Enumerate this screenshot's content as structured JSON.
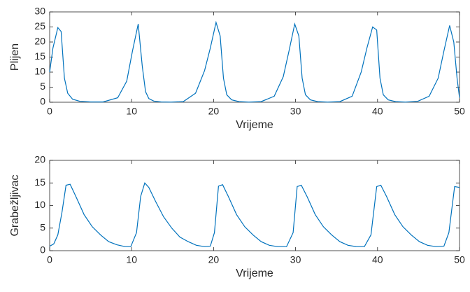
{
  "chart_data": [
    {
      "type": "line",
      "xlabel": "Vrijeme",
      "ylabel": "Plijen",
      "x": [
        0,
        0.4,
        1.0,
        1.4,
        1.8,
        2.2,
        2.8,
        3.7,
        5,
        6.5,
        8.3,
        9.4,
        10.1,
        10.8,
        11.3,
        11.7,
        12.1,
        12.7,
        13.6,
        14.8,
        16.3,
        17.8,
        18.9,
        19.6,
        20.3,
        20.8,
        21.2,
        21.6,
        22.2,
        23.1,
        24.3,
        25.8,
        27.4,
        28.5,
        29.2,
        29.9,
        30.4,
        30.8,
        31.2,
        31.8,
        32.7,
        33.9,
        35.4,
        36.9,
        38.0,
        38.7,
        39.4,
        39.9,
        40.3,
        40.7,
        41.3,
        42.2,
        43.4,
        44.9,
        46.3,
        47.4,
        48.1,
        48.8,
        49.3,
        49.7,
        50
      ],
      "series": [
        {
          "color": "#0072bd",
          "values": [
            10,
            18,
            24.8,
            23.5,
            8,
            3,
            1,
            0.3,
            0.1,
            0.1,
            1.5,
            7,
            17,
            26,
            12,
            3.5,
            1.2,
            0.4,
            0.1,
            0.05,
            0.2,
            3,
            10.5,
            18,
            26.5,
            22,
            8,
            2.5,
            0.8,
            0.2,
            0.05,
            0.2,
            2,
            8.5,
            17,
            26,
            22,
            8,
            2.5,
            0.8,
            0.2,
            0.05,
            0.2,
            2,
            10,
            18,
            25,
            24,
            8,
            2.5,
            0.8,
            0.2,
            0.05,
            0.3,
            2,
            8,
            17,
            25.5,
            20,
            8,
            1.5
          ]
        }
      ],
      "xlim": [
        0,
        50
      ],
      "xticks": [
        0,
        10,
        20,
        30,
        40,
        50
      ],
      "ylim": [
        0,
        30
      ],
      "yticks": [
        0,
        5,
        10,
        15,
        20,
        25,
        30
      ]
    },
    {
      "type": "line",
      "xlabel": "Vrijeme",
      "ylabel": "Grabežljivac",
      "x": [
        0,
        0.5,
        1,
        1.5,
        2,
        2.5,
        3.2,
        4.2,
        5.2,
        6.2,
        7.2,
        8.2,
        9.2,
        9.9,
        10.6,
        11.1,
        11.6,
        12.1,
        12.9,
        13.9,
        14.9,
        15.9,
        16.9,
        17.9,
        18.9,
        19.6,
        20.1,
        20.6,
        21.1,
        21.8,
        22.8,
        23.8,
        24.8,
        25.8,
        26.8,
        27.8,
        28.9,
        29.7,
        30.2,
        30.7,
        31.4,
        32.4,
        33.4,
        34.4,
        35.4,
        36.4,
        37.4,
        38.4,
        39.2,
        39.9,
        40.4,
        41.1,
        42.1,
        43.1,
        44.1,
        45.1,
        46.1,
        47.1,
        48.1,
        48.7,
        49.4,
        50
      ],
      "series": [
        {
          "color": "#0072bd",
          "values": [
            1,
            1.5,
            3.5,
            8.5,
            14.5,
            14.7,
            12,
            8,
            5.3,
            3.5,
            2,
            1.3,
            0.9,
            0.9,
            4,
            12,
            15,
            14,
            11,
            7.5,
            5,
            3,
            2,
            1.2,
            0.9,
            1,
            4,
            14.3,
            14.6,
            12,
            8,
            5.3,
            3.5,
            2,
            1.2,
            0.9,
            0.9,
            4,
            14.2,
            14.5,
            12,
            8,
            5.3,
            3.5,
            2,
            1.2,
            0.9,
            0.9,
            3.5,
            14.2,
            14.5,
            12,
            8,
            5.3,
            3.5,
            2,
            1.2,
            0.9,
            1,
            4,
            14.2,
            14
          ]
        }
      ],
      "xlim": [
        0,
        50
      ],
      "xticks": [
        0,
        10,
        20,
        30,
        40,
        50
      ],
      "ylim": [
        0,
        20
      ],
      "yticks": [
        0,
        5,
        10,
        15,
        20
      ]
    }
  ]
}
